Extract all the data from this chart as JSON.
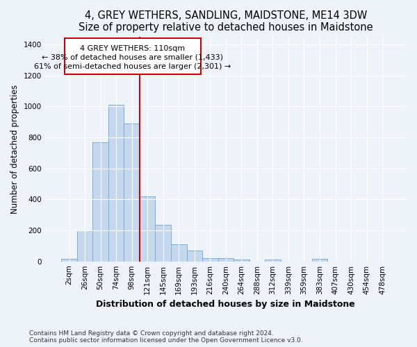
{
  "title": "4, GREY WETHERS, SANDLING, MAIDSTONE, ME14 3DW",
  "subtitle": "Size of property relative to detached houses in Maidstone",
  "xlabel": "Distribution of detached houses by size in Maidstone",
  "ylabel": "Number of detached properties",
  "footnote1": "Contains HM Land Registry data © Crown copyright and database right 2024.",
  "footnote2": "Contains public sector information licensed under the Open Government Licence v3.0.",
  "bar_labels": [
    "2sqm",
    "26sqm",
    "50sqm",
    "74sqm",
    "98sqm",
    "121sqm",
    "145sqm",
    "169sqm",
    "193sqm",
    "216sqm",
    "240sqm",
    "264sqm",
    "288sqm",
    "312sqm",
    "339sqm",
    "359sqm",
    "383sqm",
    "407sqm",
    "430sqm",
    "454sqm",
    "478sqm"
  ],
  "bar_values": [
    18,
    200,
    770,
    1010,
    890,
    420,
    235,
    112,
    68,
    22,
    20,
    12,
    0,
    12,
    0,
    0,
    18,
    0,
    0,
    0,
    0
  ],
  "bar_color": "#c5d8ef",
  "bar_edge_color": "#7aadd4",
  "vline_label": "4 GREY WETHERS: 110sqm",
  "annotation_line1": "← 38% of detached houses are smaller (1,433)",
  "annotation_line2": "61% of semi-detached houses are larger (2,301) →",
  "vline_color": "#cc0000",
  "annotation_box_edgecolor": "#cc0000",
  "background_color": "#eef2f9",
  "ylim": [
    0,
    1450
  ],
  "yticks": [
    0,
    200,
    400,
    600,
    800,
    1000,
    1200,
    1400
  ],
  "title_fontsize": 10.5,
  "subtitle_fontsize": 9.5,
  "xlabel_fontsize": 9,
  "ylabel_fontsize": 8.5,
  "tick_fontsize": 7.5,
  "annot_fontsize": 8,
  "footnote_fontsize": 6.5,
  "vline_index": 5
}
